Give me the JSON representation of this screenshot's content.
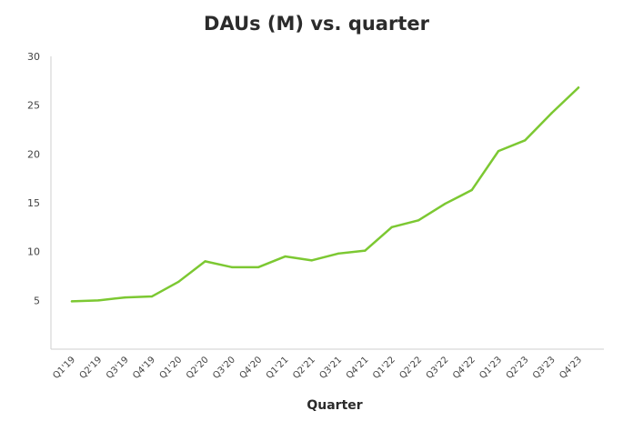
{
  "chart_data": {
    "type": "line",
    "title": "DAUs (M) vs. quarter",
    "xlabel": "Quarter",
    "ylabel": "",
    "categories": [
      "Q1'19",
      "Q2'19",
      "Q3'19",
      "Q4'19",
      "Q1'20",
      "Q2'20",
      "Q3'20",
      "Q4'20",
      "Q1'21",
      "Q2'21",
      "Q3'21",
      "Q4'21",
      "Q1'22",
      "Q2'22",
      "Q3'22",
      "Q4'22",
      "Q1'23",
      "Q2'23",
      "Q3'23",
      "Q4'23"
    ],
    "series": [
      {
        "values": [
          4.9,
          5.0,
          5.3,
          5.4,
          6.9,
          9.0,
          8.4,
          8.4,
          9.5,
          9.1,
          9.8,
          10.1,
          12.5,
          13.2,
          14.9,
          16.3,
          20.3,
          21.4,
          24.2,
          26.8
        ]
      }
    ],
    "ylim": [
      0,
      30
    ],
    "yticks": [
      5,
      10,
      15,
      20,
      25,
      30
    ],
    "grid": false,
    "line_color": "#7cc832"
  }
}
